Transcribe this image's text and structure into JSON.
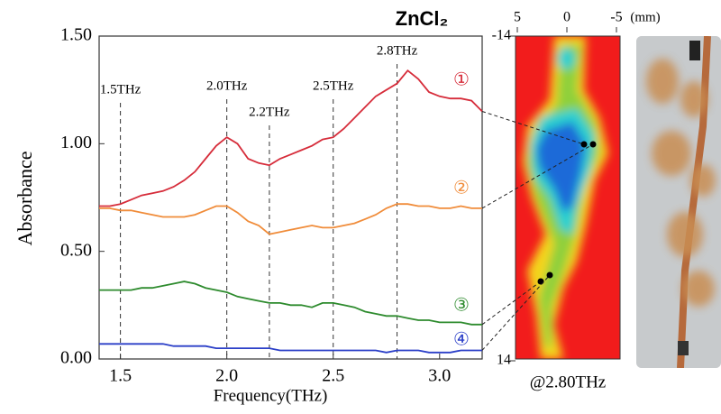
{
  "chart_data": [
    {
      "type": "line",
      "title": "ZnCl₂",
      "x_label": "Frequency(THz)",
      "y_label": "Absorbance",
      "x": [
        1.4,
        1.45,
        1.5,
        1.55,
        1.6,
        1.65,
        1.7,
        1.75,
        1.8,
        1.85,
        1.9,
        1.95,
        2.0,
        2.05,
        2.1,
        2.15,
        2.2,
        2.25,
        2.3,
        2.35,
        2.4,
        2.45,
        2.5,
        2.55,
        2.6,
        2.65,
        2.7,
        2.75,
        2.8,
        2.85,
        2.9,
        2.95,
        3.0,
        3.05,
        3.1,
        3.15,
        3.2
      ],
      "series": [
        {
          "name": "①",
          "color": "#d62c3a",
          "values": [
            0.71,
            0.71,
            0.72,
            0.74,
            0.76,
            0.77,
            0.78,
            0.8,
            0.83,
            0.87,
            0.93,
            0.99,
            1.03,
            1.0,
            0.93,
            0.91,
            0.9,
            0.93,
            0.95,
            0.97,
            0.99,
            1.02,
            1.03,
            1.07,
            1.12,
            1.17,
            1.22,
            1.25,
            1.28,
            1.34,
            1.3,
            1.24,
            1.22,
            1.21,
            1.21,
            1.2,
            1.15
          ]
        },
        {
          "name": "②",
          "color": "#f08c3a",
          "values": [
            0.7,
            0.7,
            0.69,
            0.69,
            0.68,
            0.67,
            0.66,
            0.66,
            0.66,
            0.67,
            0.69,
            0.71,
            0.71,
            0.68,
            0.64,
            0.62,
            0.58,
            0.59,
            0.6,
            0.61,
            0.62,
            0.61,
            0.61,
            0.62,
            0.63,
            0.65,
            0.67,
            0.7,
            0.72,
            0.72,
            0.71,
            0.71,
            0.7,
            0.7,
            0.71,
            0.7,
            0.7
          ]
        },
        {
          "name": "③",
          "color": "#2e8b2e",
          "values": [
            0.32,
            0.32,
            0.32,
            0.32,
            0.33,
            0.33,
            0.34,
            0.35,
            0.36,
            0.35,
            0.33,
            0.32,
            0.31,
            0.29,
            0.28,
            0.27,
            0.26,
            0.26,
            0.25,
            0.25,
            0.24,
            0.26,
            0.26,
            0.25,
            0.24,
            0.22,
            0.21,
            0.2,
            0.2,
            0.19,
            0.18,
            0.18,
            0.17,
            0.17,
            0.17,
            0.16,
            0.16
          ]
        },
        {
          "name": "④",
          "color": "#2b3fc8",
          "values": [
            0.07,
            0.07,
            0.07,
            0.07,
            0.07,
            0.07,
            0.07,
            0.06,
            0.06,
            0.06,
            0.06,
            0.05,
            0.05,
            0.05,
            0.05,
            0.05,
            0.05,
            0.04,
            0.04,
            0.04,
            0.04,
            0.04,
            0.04,
            0.04,
            0.04,
            0.04,
            0.04,
            0.03,
            0.04,
            0.04,
            0.04,
            0.03,
            0.03,
            0.03,
            0.04,
            0.04,
            0.04
          ]
        }
      ],
      "xlim": [
        1.4,
        3.2
      ],
      "ylim": [
        0,
        1.5
      ],
      "xticks": [
        1.5,
        {
          "value": 2,
          "label": "2.0"
        },
        2.5,
        {
          "value": 3,
          "label": "3.0"
        }
      ],
      "yticks": [
        {
          "value": 0,
          "label": "0.00"
        },
        {
          "value": 0.5,
          "label": "0.50"
        },
        {
          "value": 1,
          "label": "1.00"
        },
        {
          "value": 1.5,
          "label": "1.50"
        }
      ],
      "annotations": [
        {
          "x": 1.5,
          "label": "1.5THz"
        },
        {
          "x": 2.0,
          "label": "2.0THz"
        },
        {
          "x": 2.2,
          "label": "2.2THz"
        },
        {
          "x": 2.5,
          "label": "2.5THz"
        },
        {
          "x": 2.8,
          "label": "2.8THz"
        }
      ]
    },
    {
      "type": "heatmap",
      "xlim": [
        5,
        -5
      ],
      "ylim": [
        -14,
        14
      ],
      "xticks": [
        5,
        0,
        -5
      ],
      "yticks": [
        -14,
        14
      ],
      "unit": "(mm)",
      "caption": "@2.80THz"
    }
  ]
}
